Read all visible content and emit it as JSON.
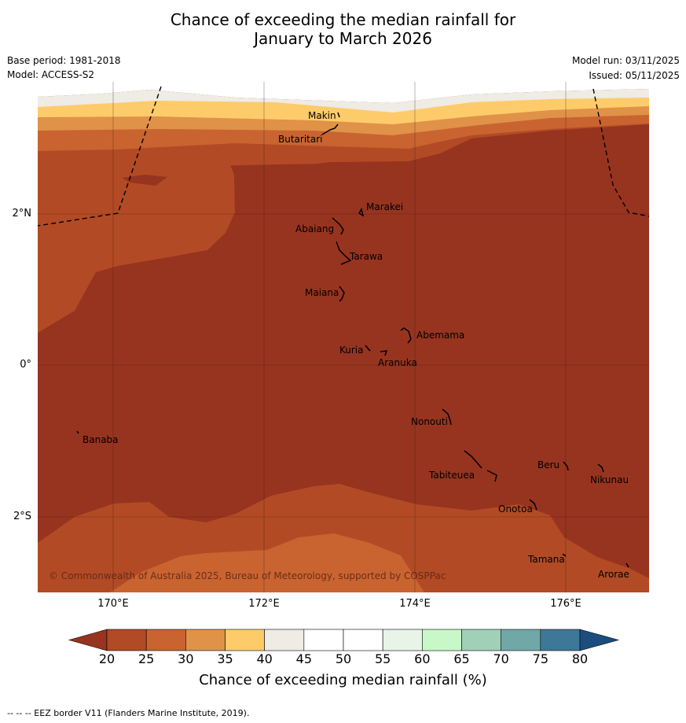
{
  "title": {
    "line1": "Chance of exceeding the median rainfall for",
    "line2": "January to March 2026"
  },
  "meta": {
    "base_period": "Base period: 1981-2018",
    "model": "Model: ACCESS-S2",
    "model_run": "Model run: 03/11/2025",
    "issued": "Issued: 05/11/2025"
  },
  "map": {
    "x_ticks": [
      "170°E",
      "172°E",
      "174°E",
      "176°E"
    ],
    "y_ticks": [
      "2°N",
      "0°",
      "2°S"
    ],
    "copyright": "© Commonwealth of Australia 2025, Bureau of Meteorology, supported by COSPPac",
    "islands": [
      {
        "name": "Makin"
      },
      {
        "name": "Butaritari"
      },
      {
        "name": "Marakei"
      },
      {
        "name": "Abaiang"
      },
      {
        "name": "Tarawa"
      },
      {
        "name": "Maiana"
      },
      {
        "name": "Abemama"
      },
      {
        "name": "Kuria"
      },
      {
        "name": "Aranuka"
      },
      {
        "name": "Nonouti"
      },
      {
        "name": "Banaba"
      },
      {
        "name": "Beru"
      },
      {
        "name": "Tabiteuea"
      },
      {
        "name": "Nikunau"
      },
      {
        "name": "Onotoa"
      },
      {
        "name": "Tamana"
      },
      {
        "name": "Arorae"
      }
    ]
  },
  "colorbar": {
    "title": "Chance of exceeding median rainfall (%)",
    "ticks": [
      "20",
      "25",
      "30",
      "35",
      "40",
      "45",
      "50",
      "55",
      "60",
      "65",
      "70",
      "75",
      "80"
    ],
    "under_color": "#97341f",
    "over_color": "#1b4e7e",
    "colors": [
      "#b24b25",
      "#c96431",
      "#e09248",
      "#fecb6a",
      "#efebe5",
      "#ffffff",
      "#ffffff",
      "#e8f4e8",
      "#c8f8c8",
      "#a0d0b8",
      "#70a8a8",
      "#3e7898"
    ]
  },
  "footer": "--  --  -- EEZ border V11 (Flanders Marine Institute, 2019)."
}
